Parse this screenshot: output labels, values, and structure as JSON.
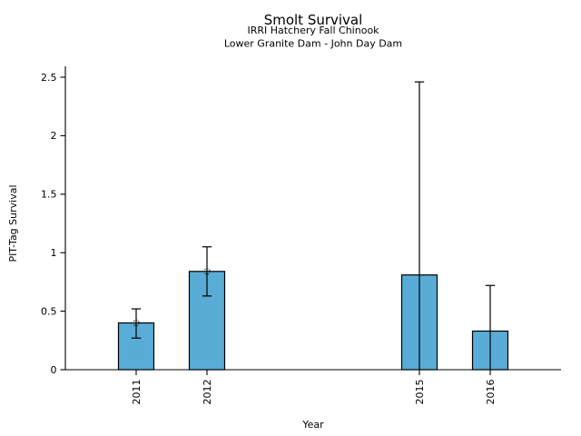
{
  "chart_data": {
    "type": "bar",
    "title": "Smolt Survival",
    "subtitle_line1": "IRRI Hatchery Fall Chinook",
    "subtitle_line2": "Lower Granite Dam - John Day Dam",
    "xlabel": "Year",
    "ylabel": "PIT-Tag Survival",
    "categories": [
      "2011",
      "2012",
      "2015",
      "2016"
    ],
    "x": [
      2011,
      2012,
      2015,
      2016
    ],
    "values": [
      0.4,
      0.84,
      0.81,
      0.33
    ],
    "error_low": [
      0.27,
      0.63,
      0,
      0
    ],
    "error_high": [
      0.52,
      1.05,
      2.46,
      0.72
    ],
    "point_markers": [
      true,
      true,
      false,
      false
    ],
    "xlim": [
      2010,
      2017
    ],
    "ylim": [
      0,
      2.59
    ],
    "yticks": [
      0,
      0.5,
      1,
      1.5,
      2,
      2.5
    ],
    "ytick_labels": [
      "0",
      "0.5",
      "1",
      "1.5",
      "2",
      "2.5"
    ],
    "bar_width_years": 0.5,
    "bar_color": "#59ACD6",
    "bar_edge_color": "#000000",
    "error_bar_color": "#000000",
    "axis_color": "#000000",
    "grid": false,
    "legend": false
  }
}
